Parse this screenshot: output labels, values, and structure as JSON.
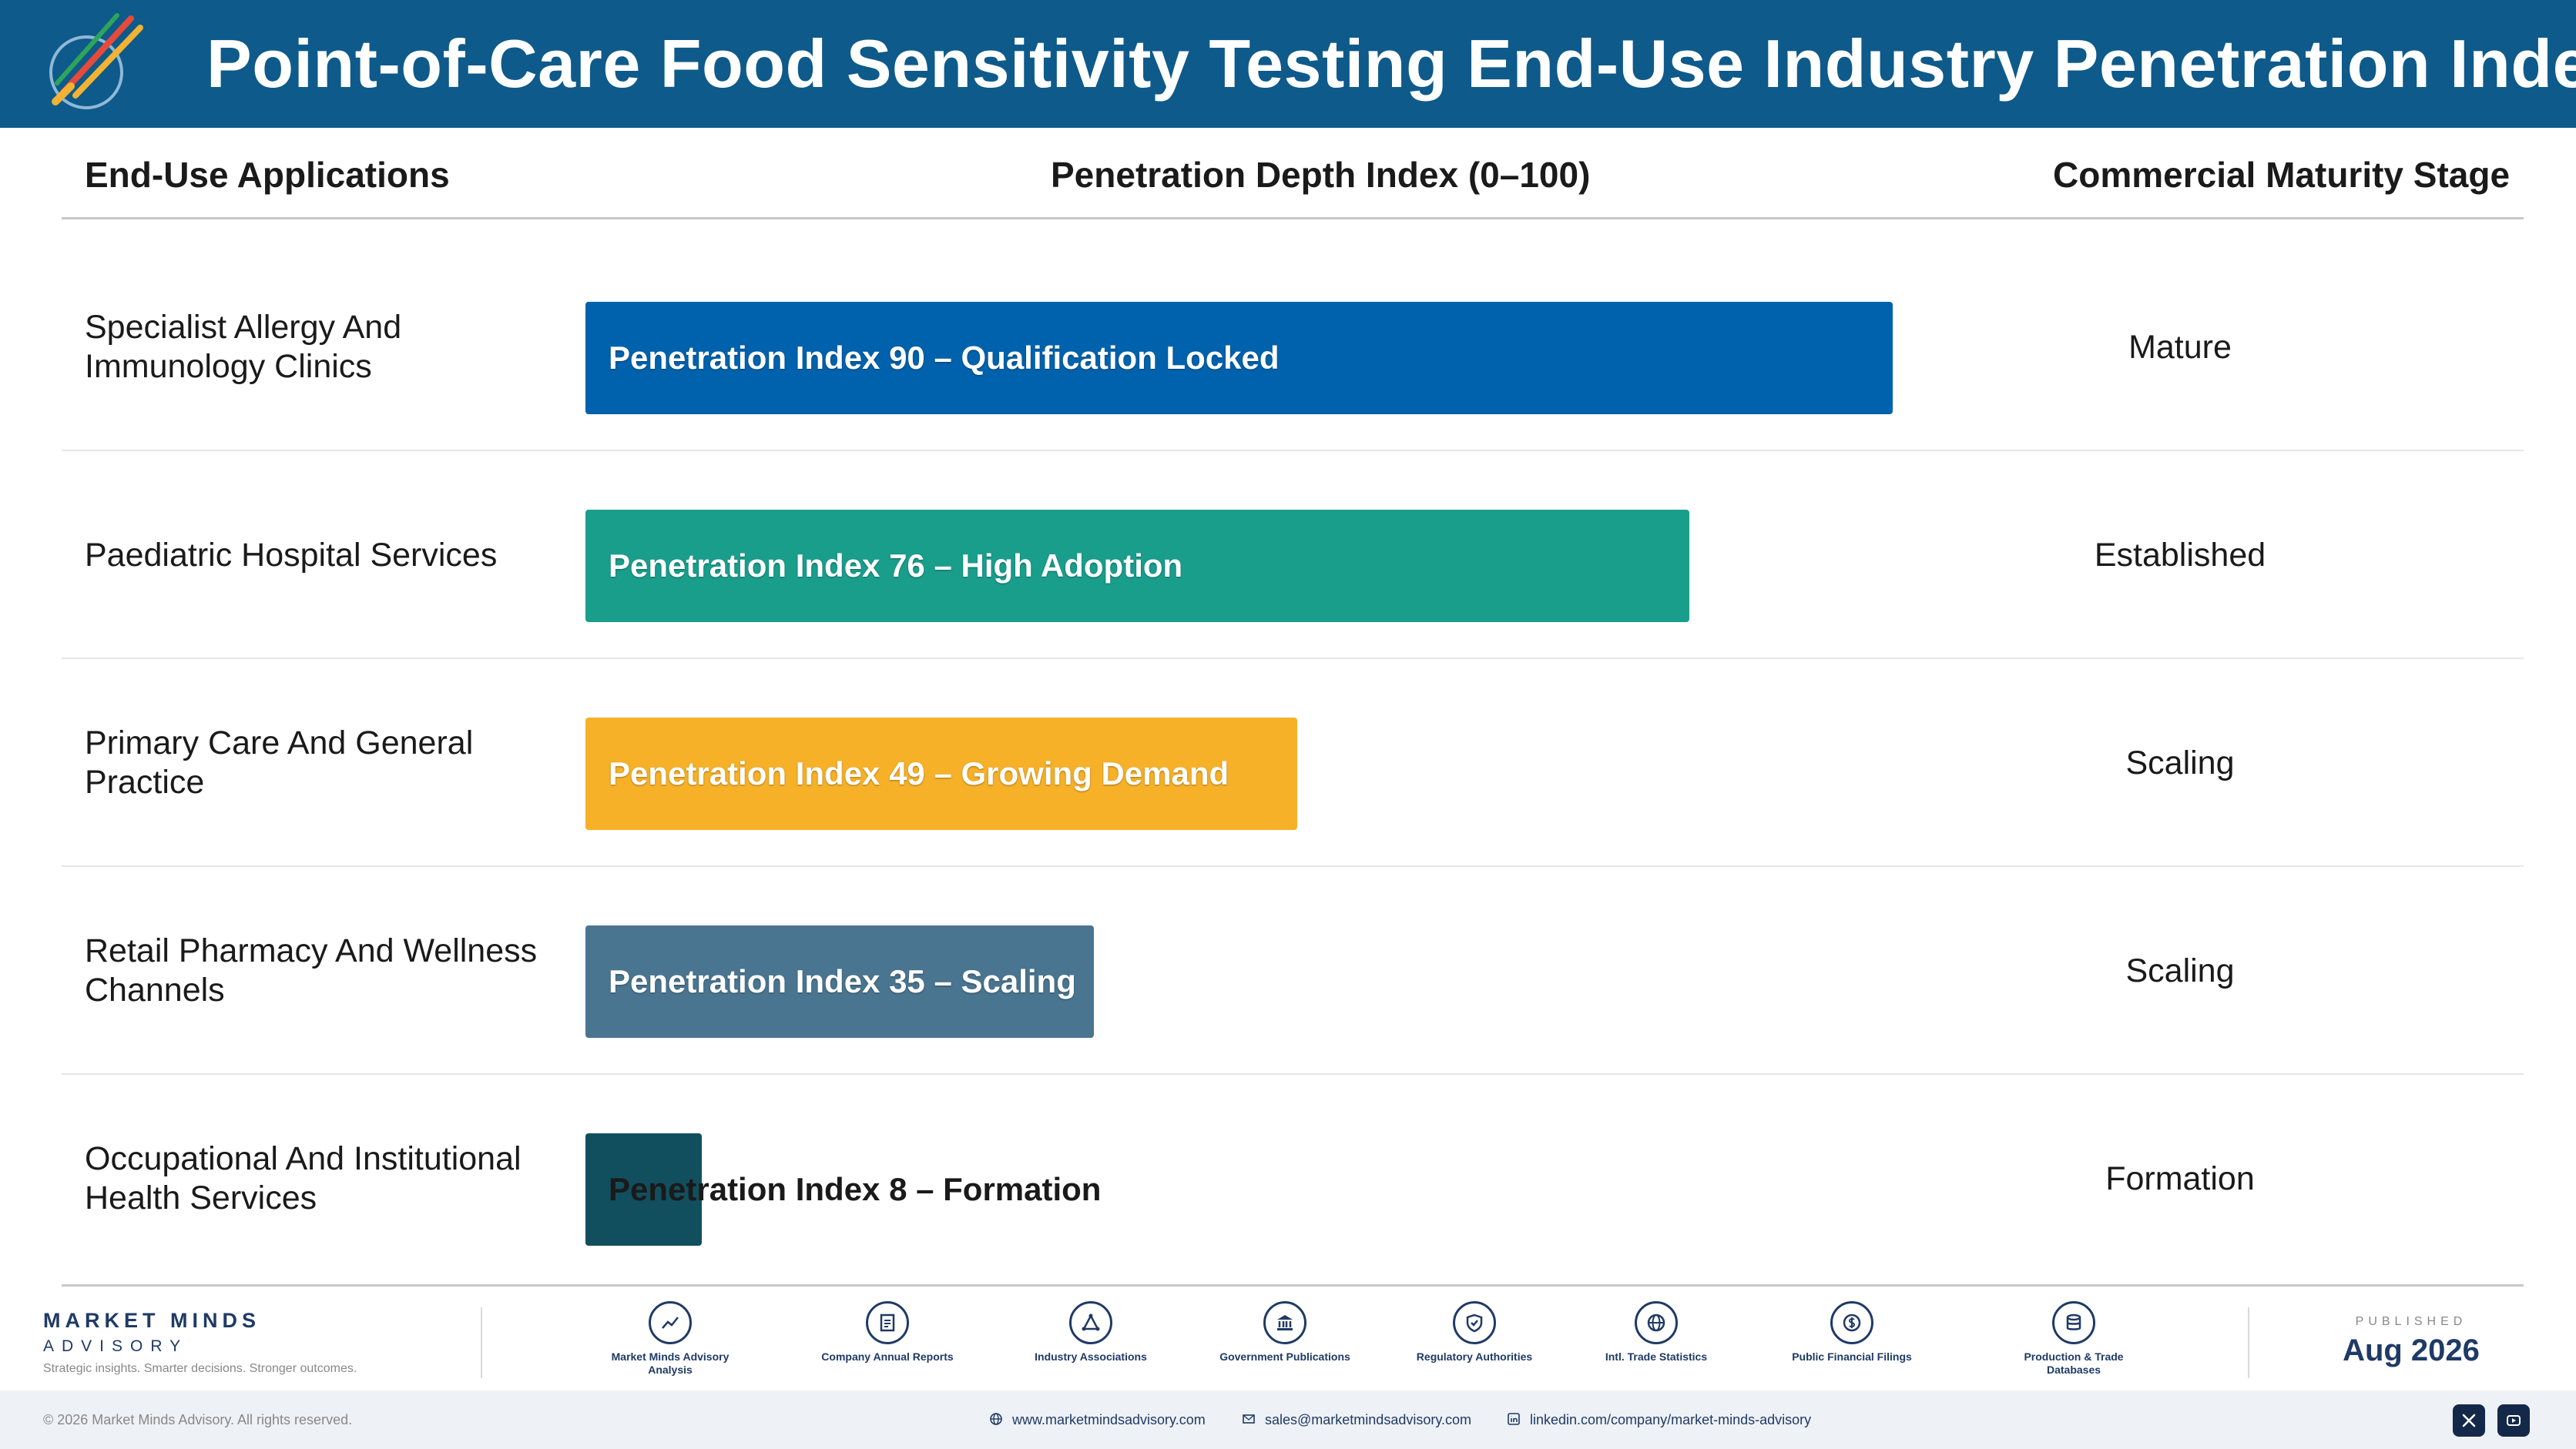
{
  "header": {
    "title": "Point-of-Care Food Sensitivity Testing End-Use Industry Penetration Index",
    "logo_icon": "market-minds-logo-icon"
  },
  "columns": {
    "applications": "End-Use Applications",
    "penetration": "Penetration Depth Index (0–100)",
    "stage": "Commercial Maturity Stage"
  },
  "chart_data": {
    "type": "bar",
    "orientation": "horizontal",
    "xlim": [
      0,
      100
    ],
    "categories": [
      "Specialist Allergy And Immunology Clinics",
      "Paediatric Hospital Services",
      "Primary Care And General Practice",
      "Retail Pharmacy And Wellness Channels",
      "Occupational And Institutional Health Services"
    ],
    "values": [
      90,
      76,
      49,
      35,
      8
    ],
    "bar_labels": [
      "Penetration Index 90 – Qualification Locked",
      "Penetration Index 76 – High Adoption",
      "Penetration Index 49 – Growing Demand",
      "Penetration Index 35 – Scaling",
      "Penetration Index 8 – Formation"
    ],
    "stages": [
      "Mature",
      "Established",
      "Scaling",
      "Scaling",
      "Formation"
    ],
    "colors": [
      "#0062ac",
      "#1a9e8c",
      "#f6b128",
      "#4a7590",
      "#124f5e"
    ]
  },
  "footer": {
    "brand_name": "MARKET MINDS",
    "brand_sub": "ADVISORY",
    "tagline": "Strategic insights. Smarter decisions. Stronger outcomes.",
    "sources": [
      {
        "label": "Market Minds Advisory Analysis",
        "icon": "chart-line-icon"
      },
      {
        "label": "Company Annual Reports",
        "icon": "document-icon"
      },
      {
        "label": "Industry Associations",
        "icon": "network-icon"
      },
      {
        "label": "Government Publications",
        "icon": "government-building-icon"
      },
      {
        "label": "Regulatory Authorities",
        "icon": "shield-check-icon"
      },
      {
        "label": "Intl. Trade Statistics",
        "icon": "globe-icon"
      },
      {
        "label": "Public Financial Filings",
        "icon": "dollar-coin-icon"
      },
      {
        "label": "Production & Trade Databases",
        "icon": "database-icon"
      }
    ],
    "published_label": "PUBLISHED",
    "published_date": "Aug 2026",
    "copyright": "© 2026 Market Minds Advisory. All rights reserved.",
    "website": "www.marketmindsadvisory.com",
    "email": "sales@marketmindsadvisory.com",
    "linkedin": "linkedin.com/company/market-minds-advisory"
  }
}
